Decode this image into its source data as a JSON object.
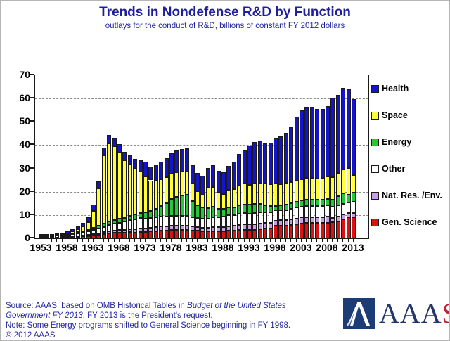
{
  "page": {
    "title": "Trends in Nondefense R&D by Function",
    "subtitle": "outlays for the conduct of R&D, billions of constant FY 2012 dollars"
  },
  "source": {
    "line1_regular": "Source: AAAS, based on OMB Historical Tables in ",
    "line1_italic": "Budget of the United States",
    "line2_italic": "Government FY 2013",
    "line2_regular": ". FY 2013 is the President's request.",
    "note": "Note: Some Energy programs shifted to General Science beginning in FY 1998.",
    "copyright": "© 2012 AAAS"
  },
  "logo": {
    "letters_navy": "AAA",
    "letter_red": "S"
  },
  "colors": {
    "title_text": "#1f1f9e",
    "source_text": "#2727a3",
    "axis_text": "#000000",
    "plot_border": "#1a1a1a",
    "gridline": "#8a8a8a",
    "logo_flag": "#1c3c78",
    "logo_navy": "#24356b",
    "logo_red": "#c42033"
  },
  "chart_data": {
    "type": "bar",
    "stacked": true,
    "title": "Trends in Nondefense R&D by Function",
    "subtitle": "outlays for the conduct of R&D, billions of constant FY 2012 dollars",
    "ylabel": "billions of constant FY 2012 dollars",
    "ylim": [
      0,
      70
    ],
    "yticks": [
      0,
      10,
      20,
      30,
      40,
      50,
      60,
      70
    ],
    "grid": "horizontal-dashed",
    "legend_position": "right",
    "legend_order_top_to_bottom": [
      "Health",
      "Space",
      "Energy",
      "Other",
      "Nat. Res. /Env.",
      "Gen. Science"
    ],
    "x_tick_labels": [
      "1953",
      "1958",
      "1963",
      "1968",
      "1973",
      "1978",
      "1983",
      "1988",
      "1993",
      "1998",
      "2003",
      "2008",
      "2013"
    ],
    "years": [
      1953,
      1954,
      1955,
      1956,
      1957,
      1958,
      1959,
      1960,
      1961,
      1962,
      1963,
      1964,
      1965,
      1966,
      1967,
      1968,
      1969,
      1970,
      1971,
      1972,
      1973,
      1974,
      1975,
      1976,
      1977,
      1978,
      1979,
      1980,
      1981,
      1982,
      1983,
      1984,
      1985,
      1986,
      1987,
      1988,
      1989,
      1990,
      1991,
      1992,
      1993,
      1994,
      1995,
      1996,
      1997,
      1998,
      1999,
      2000,
      2001,
      2002,
      2003,
      2004,
      2005,
      2006,
      2007,
      2008,
      2009,
      2010,
      2011,
      2012,
      2013
    ],
    "series": [
      {
        "name": "Gen. Science",
        "color": "#dd1111",
        "values": [
          0.2,
          0.2,
          0.2,
          0.3,
          0.3,
          0.4,
          0.5,
          0.6,
          0.8,
          1.0,
          1.3,
          1.6,
          1.9,
          2.2,
          2.4,
          2.5,
          2.5,
          2.6,
          2.5,
          2.7,
          2.8,
          2.9,
          3.1,
          3.2,
          3.3,
          3.5,
          3.6,
          3.6,
          3.6,
          3.4,
          3.2,
          3.0,
          2.9,
          3.0,
          3.1,
          3.1,
          3.3,
          3.3,
          3.5,
          3.6,
          3.6,
          3.7,
          3.8,
          4.2,
          4.3,
          5.4,
          5.5,
          5.5,
          5.7,
          5.9,
          6.4,
          6.5,
          6.5,
          6.5,
          6.6,
          6.7,
          6.8,
          7.2,
          8.2,
          9.0,
          9.1
        ]
      },
      {
        "name": "Nat. Res. /Env.",
        "color": "#c9a0e8",
        "values": [
          0.1,
          0.1,
          0.1,
          0.1,
          0.2,
          0.2,
          0.2,
          0.3,
          0.3,
          0.4,
          0.5,
          0.6,
          0.7,
          0.8,
          0.9,
          1.0,
          1.1,
          1.2,
          1.4,
          1.5,
          1.5,
          1.6,
          1.8,
          1.8,
          1.8,
          1.8,
          1.8,
          1.9,
          1.9,
          1.8,
          1.7,
          1.6,
          1.7,
          1.7,
          1.7,
          1.8,
          1.9,
          2.0,
          2.2,
          2.3,
          2.3,
          2.4,
          2.4,
          2.3,
          2.3,
          2.2,
          2.3,
          2.3,
          2.4,
          2.5,
          2.6,
          2.6,
          2.6,
          2.6,
          2.6,
          2.6,
          2.1,
          2.1,
          2.1,
          2.0,
          1.9
        ]
      },
      {
        "name": "Other",
        "color": "#ffffff",
        "values": [
          0.6,
          0.6,
          0.7,
          0.8,
          0.9,
          1.0,
          1.1,
          1.2,
          1.4,
          1.5,
          1.7,
          1.9,
          2.2,
          2.6,
          2.9,
          3.2,
          3.5,
          4.0,
          4.4,
          4.7,
          4.3,
          4.4,
          4.2,
          4.3,
          4.2,
          4.3,
          4.2,
          4.2,
          4.1,
          3.9,
          3.8,
          3.9,
          4.0,
          4.4,
          4.4,
          4.4,
          4.7,
          4.6,
          4.8,
          4.9,
          4.8,
          4.9,
          4.9,
          4.6,
          4.5,
          4.4,
          4.4,
          4.4,
          4.6,
          4.8,
          4.7,
          4.8,
          4.9,
          4.8,
          4.7,
          4.8,
          4.6,
          4.8,
          4.5,
          4.3,
          4.7
        ]
      },
      {
        "name": "Energy",
        "color": "#1fcc33",
        "values": [
          0.1,
          0.1,
          0.1,
          0.2,
          0.2,
          0.3,
          0.4,
          0.5,
          0.6,
          0.8,
          1.0,
          1.2,
          1.4,
          1.6,
          1.7,
          1.8,
          1.8,
          1.8,
          1.9,
          2.1,
          2.5,
          2.9,
          3.5,
          4.6,
          5.8,
          7.3,
          8.3,
          8.8,
          9.0,
          6.8,
          5.5,
          4.8,
          4.5,
          4.4,
          3.6,
          3.3,
          3.4,
          3.4,
          3.6,
          3.7,
          3.8,
          3.9,
          3.8,
          3.0,
          2.8,
          2.0,
          2.1,
          2.2,
          2.3,
          2.4,
          2.6,
          2.6,
          2.7,
          2.6,
          2.7,
          2.8,
          3.0,
          4.0,
          4.5,
          3.5,
          3.9
        ]
      },
      {
        "name": "Space",
        "color": "#ffff33",
        "values": [
          0.1,
          0.1,
          0.1,
          0.1,
          0.2,
          0.3,
          0.8,
          1.3,
          1.9,
          3.2,
          7.4,
          16.2,
          29.3,
          33.6,
          31.7,
          28.4,
          24.7,
          22.1,
          19.7,
          17.6,
          15.6,
          13.1,
          12.0,
          11.5,
          11.1,
          11.0,
          10.4,
          10.1,
          10.1,
          7.6,
          6.0,
          5.5,
          8.5,
          8.6,
          6.8,
          6.5,
          7.5,
          7.8,
          8.6,
          8.9,
          8.5,
          8.7,
          8.6,
          9.3,
          9.2,
          9.5,
          9.0,
          9.3,
          9.2,
          9.0,
          9.2,
          9.4,
          9.4,
          9.3,
          9.3,
          9.6,
          9.9,
          10.0,
          10.4,
          11.4,
          7.7
        ]
      },
      {
        "name": "Health",
        "color": "#1414cc",
        "values": [
          0.2,
          0.3,
          0.3,
          0.4,
          0.6,
          0.8,
          1.0,
          1.2,
          1.6,
          2.1,
          2.6,
          3.0,
          3.3,
          3.5,
          3.6,
          3.6,
          3.6,
          3.8,
          4.3,
          5.0,
          6.3,
          6.0,
          7.0,
          7.4,
          8.2,
          8.7,
          9.5,
          9.7,
          9.9,
          8.0,
          7.8,
          8.0,
          8.6,
          9.2,
          9.3,
          9.4,
          10.2,
          11.9,
          13.4,
          14.4,
          16.8,
          17.6,
          18.5,
          17.3,
          17.9,
          19.8,
          20.4,
          21.5,
          23.5,
          27.6,
          29.5,
          30.6,
          30.2,
          29.8,
          29.6,
          30.2,
          33.9,
          33.6,
          35.0,
          33.8,
          32.4
        ]
      }
    ]
  }
}
